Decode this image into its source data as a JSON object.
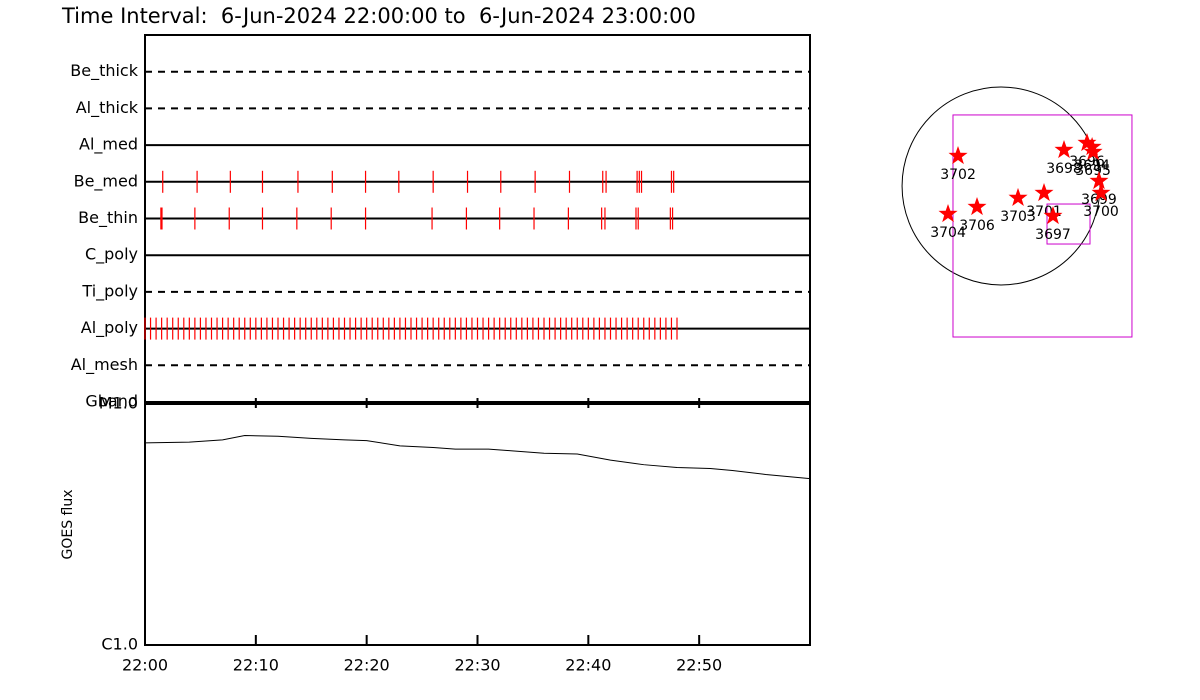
{
  "title": "Time Interval:  6-Jun-2024 22:00:00 to  6-Jun-2024 23:00:00",
  "chart_data": [
    {
      "type": "timeline",
      "color": "#ff0000",
      "xlim": [
        "22:00",
        "23:00"
      ],
      "categories": [
        "Be_thick",
        "Al_thick",
        "Al_med",
        "Be_med",
        "Be_thin",
        "C_poly",
        "Ti_poly",
        "Al_poly",
        "Al_mesh",
        "Gband"
      ],
      "line_styles": [
        "dashed",
        "dashed",
        "solid",
        "solid",
        "solid",
        "solid",
        "dashed",
        "solid",
        "dashed",
        "dashed"
      ],
      "events": [
        [],
        [],
        [],
        [
          "22:01:36",
          "22:04:42",
          "22:07:42",
          "22:10:36",
          "22:13:48",
          "22:16:54",
          "22:19:54",
          "22:22:54",
          "22:26:00",
          "22:29:06",
          "22:32:06",
          "22:35:12",
          "22:38:18",
          "22:41:18",
          "22:41:36",
          "22:44:24",
          "22:44:36",
          "22:44:48",
          "22:47:30",
          "22:47:42"
        ],
        [
          "22:01:26",
          "22:01:32",
          "22:04:30",
          "22:07:36",
          "22:10:36",
          "22:13:42",
          "22:16:48",
          "22:19:54",
          "22:25:54",
          "22:29:00",
          "22:32:00",
          "22:35:06",
          "22:38:12",
          "22:41:12",
          "22:41:30",
          "22:44:18",
          "22:44:30",
          "22:47:24",
          "22:47:36"
        ],
        [],
        [],
        [
          "22:00:00",
          "22:00:30",
          "22:01:00",
          "22:01:30",
          "22:02:00",
          "22:02:30",
          "22:03:00",
          "22:03:30",
          "22:04:00",
          "22:04:30",
          "22:05:00",
          "22:05:30",
          "22:06:00",
          "22:06:30",
          "22:07:00",
          "22:07:30",
          "22:08:00",
          "22:08:30",
          "22:09:00",
          "22:09:30",
          "22:10:00",
          "22:10:30",
          "22:11:00",
          "22:11:30",
          "22:12:00",
          "22:12:30",
          "22:13:00",
          "22:13:30",
          "22:14:00",
          "22:14:30",
          "22:15:00",
          "22:15:30",
          "22:16:00",
          "22:16:30",
          "22:17:00",
          "22:17:30",
          "22:18:00",
          "22:18:30",
          "22:19:00",
          "22:19:30",
          "22:20:00",
          "22:20:30",
          "22:21:00",
          "22:21:30",
          "22:22:00",
          "22:22:30",
          "22:23:00",
          "22:23:30",
          "22:24:00",
          "22:24:30",
          "22:25:00",
          "22:25:30",
          "22:26:00",
          "22:26:30",
          "22:27:00",
          "22:27:30",
          "22:28:00",
          "22:28:30",
          "22:29:00",
          "22:29:30",
          "22:30:00",
          "22:30:30",
          "22:31:00",
          "22:31:30",
          "22:32:00",
          "22:32:30",
          "22:33:00",
          "22:33:30",
          "22:34:00",
          "22:34:30",
          "22:35:00",
          "22:35:30",
          "22:36:00",
          "22:36:30",
          "22:37:00",
          "22:37:30",
          "22:38:00",
          "22:38:30",
          "22:39:00",
          "22:39:30",
          "22:40:00",
          "22:40:30",
          "22:41:00",
          "22:41:30",
          "22:42:00",
          "22:42:30",
          "22:43:00",
          "22:43:30",
          "22:44:00",
          "22:44:30",
          "22:45:00",
          "22:45:30",
          "22:46:00",
          "22:46:30",
          "22:47:00",
          "22:47:30",
          "22:48:00"
        ],
        [],
        []
      ]
    },
    {
      "type": "line",
      "y_label": "GOES flux",
      "color": "#000000",
      "log_scale": true,
      "x": [
        "22:00",
        "22:04",
        "22:07",
        "22:09",
        "22:12",
        "22:15",
        "22:18",
        "22:20",
        "22:23",
        "22:26",
        "22:28",
        "22:31",
        "22:33",
        "22:36",
        "22:39",
        "22:42",
        "22:45",
        "22:48",
        "22:51",
        "22:53",
        "22:56",
        "23:00"
      ],
      "values": [
        6.9e-06,
        6.95e-06,
        7.1e-06,
        7.4e-06,
        7.35e-06,
        7.2e-06,
        7.1e-06,
        7.05e-06,
        6.7e-06,
        6.6e-06,
        6.5e-06,
        6.5e-06,
        6.4e-06,
        6.25e-06,
        6.2e-06,
        5.85e-06,
        5.6e-06,
        5.45e-06,
        5.4e-06,
        5.3e-06,
        5.1e-06,
        4.9e-06
      ],
      "xlim": [
        "22:00",
        "23:00"
      ],
      "xticks": [
        "22:00",
        "22:10",
        "22:20",
        "22:30",
        "22:40",
        "22:50"
      ],
      "ylim": [
        1e-06,
        1e-05
      ],
      "yticks": [
        {
          "value": 1e-06,
          "label": "C1.0"
        },
        {
          "value": 1e-05,
          "label": "M1.0"
        }
      ]
    },
    {
      "type": "map",
      "r_sun": 960,
      "color": "#ff0000",
      "limb_color": "#000000",
      "box_color": "#cc00cc",
      "xlim": [
        -1077,
        1736
      ],
      "ylim": [
        -1397,
        1222
      ],
      "boxes": [
        [
          -466,
          1270,
          -1465,
          689
        ],
        [
          446,
          863,
          -563,
          -175
        ]
      ],
      "points": [
        {
          "label": "3702",
          "x": -417,
          "y": 291
        },
        {
          "label": "3704",
          "x": -514,
          "y": -272
        },
        {
          "label": "3706",
          "x": -233,
          "y": -204
        },
        {
          "label": "3703",
          "x": 165,
          "y": -116
        },
        {
          "label": "3701",
          "x": 417,
          "y": -68
        },
        {
          "label": "3697",
          "x": 504,
          "y": -291
        },
        {
          "label": "3698",
          "x": 611,
          "y": 349
        },
        {
          "label": "3696",
          "x": 834,
          "y": 417
        },
        {
          "label": "3694",
          "x": 883,
          "y": 378
        },
        {
          "label": "3695",
          "x": 893,
          "y": 330
        },
        {
          "label": "3699",
          "x": 950,
          "y": 48
        },
        {
          "label": "3700",
          "x": 970,
          "y": -68
        }
      ]
    }
  ]
}
